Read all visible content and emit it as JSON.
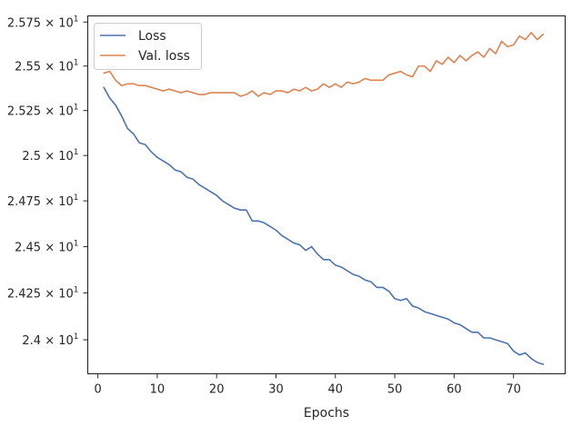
{
  "chart_data": {
    "type": "line",
    "title": "",
    "xlabel": "Epochs",
    "ylabel": "",
    "xlim": [
      -1.7,
      78.7
    ],
    "ylim": [
      23.82,
      25.785
    ],
    "yscale": "log",
    "grid": false,
    "legend_position": "top-left",
    "x_ticks": [
      {
        "value": 0,
        "label": "0"
      },
      {
        "value": 10,
        "label": "10"
      },
      {
        "value": 20,
        "label": "20"
      },
      {
        "value": 30,
        "label": "30"
      },
      {
        "value": 40,
        "label": "40"
      },
      {
        "value": 50,
        "label": "50"
      },
      {
        "value": 60,
        "label": "60"
      },
      {
        "value": 70,
        "label": "70"
      }
    ],
    "y_ticks": [
      {
        "value": 24.0,
        "mantissa": "2.4",
        "exponent": "1"
      },
      {
        "value": 24.25,
        "mantissa": "2.425",
        "exponent": "1"
      },
      {
        "value": 24.5,
        "mantissa": "2.45",
        "exponent": "1"
      },
      {
        "value": 24.75,
        "mantissa": "2.475",
        "exponent": "1"
      },
      {
        "value": 25.0,
        "mantissa": "2.5",
        "exponent": "1"
      },
      {
        "value": 25.25,
        "mantissa": "2.525",
        "exponent": "1"
      },
      {
        "value": 25.5,
        "mantissa": "2.55",
        "exponent": "1"
      },
      {
        "value": 25.75,
        "mantissa": "2.575",
        "exponent": "1"
      }
    ],
    "x": [
      1,
      2,
      3,
      4,
      5,
      6,
      7,
      8,
      9,
      10,
      11,
      12,
      13,
      14,
      15,
      16,
      17,
      18,
      19,
      20,
      21,
      22,
      23,
      24,
      25,
      26,
      27,
      28,
      29,
      30,
      31,
      32,
      33,
      34,
      35,
      36,
      37,
      38,
      39,
      40,
      41,
      42,
      43,
      44,
      45,
      46,
      47,
      48,
      49,
      50,
      51,
      52,
      53,
      54,
      55,
      56,
      57,
      58,
      59,
      60,
      61,
      62,
      63,
      64,
      65,
      66,
      67,
      68,
      69,
      70,
      71,
      72,
      73,
      74,
      75
    ],
    "series": [
      {
        "name": "Loss",
        "color": "#4c72b0",
        "values": [
          25.38,
          25.32,
          25.28,
          25.22,
          25.15,
          25.12,
          25.07,
          25.06,
          25.02,
          24.99,
          24.97,
          24.95,
          24.92,
          24.91,
          24.88,
          24.87,
          24.84,
          24.82,
          24.8,
          24.78,
          24.75,
          24.73,
          24.71,
          24.7,
          24.7,
          24.64,
          24.64,
          24.63,
          24.61,
          24.59,
          24.56,
          24.54,
          24.52,
          24.51,
          24.48,
          24.5,
          24.46,
          24.43,
          24.43,
          24.4,
          24.39,
          24.37,
          24.35,
          24.34,
          24.32,
          24.31,
          24.28,
          24.28,
          24.26,
          24.22,
          24.21,
          24.22,
          24.18,
          24.17,
          24.15,
          24.14,
          24.13,
          24.12,
          24.11,
          24.09,
          24.08,
          24.06,
          24.04,
          24.04,
          24.01,
          24.01,
          24.0,
          23.99,
          23.98,
          23.94,
          23.92,
          23.93,
          23.9,
          23.88,
          23.87
        ]
      },
      {
        "name": "Val. loss",
        "color": "#dd8452",
        "values": [
          25.46,
          25.47,
          25.42,
          25.39,
          25.4,
          25.4,
          25.39,
          25.39,
          25.38,
          25.37,
          25.36,
          25.37,
          25.36,
          25.35,
          25.36,
          25.35,
          25.34,
          25.34,
          25.35,
          25.35,
          25.35,
          25.35,
          25.35,
          25.33,
          25.34,
          25.36,
          25.33,
          25.35,
          25.34,
          25.36,
          25.36,
          25.35,
          25.37,
          25.36,
          25.38,
          25.36,
          25.37,
          25.4,
          25.38,
          25.4,
          25.38,
          25.41,
          25.4,
          25.41,
          25.43,
          25.42,
          25.42,
          25.42,
          25.45,
          25.46,
          25.47,
          25.45,
          25.44,
          25.5,
          25.5,
          25.47,
          25.53,
          25.51,
          25.55,
          25.52,
          25.56,
          25.53,
          25.56,
          25.58,
          25.55,
          25.6,
          25.57,
          25.64,
          25.61,
          25.62,
          25.67,
          25.65,
          25.69,
          25.65,
          25.68
        ]
      }
    ]
  }
}
